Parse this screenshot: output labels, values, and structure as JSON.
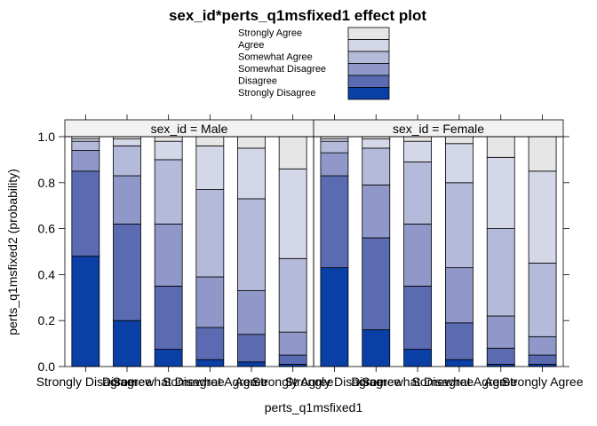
{
  "chart_data": {
    "type": "bar",
    "stacked": true,
    "title": "sex_id*perts_q1msfixed1 effect plot",
    "xlabel": "perts_q1msfixed1",
    "ylabel": "perts_q1msfixed2 (probability)",
    "ylim": [
      0,
      1
    ],
    "yticks": [
      "0.0",
      "0.2",
      "0.4",
      "0.6",
      "0.8",
      "1.0"
    ],
    "categories": [
      "Strongly Disagree",
      "Disagree",
      "Somewhat Disagree",
      "Somewhat Agree",
      "Agree",
      "Strongly Agree"
    ],
    "legend": {
      "placement": "top-center",
      "levels": [
        "Strongly Agree",
        "Agree",
        "Somewhat Agree",
        "Somewhat Disagree",
        "Disagree",
        "Strongly Disagree"
      ]
    },
    "colors": [
      "#0a3fa6",
      "#5a6bb2",
      "#8f98c8",
      "#b4bad9",
      "#d4d7e7",
      "#e6e6e6"
    ],
    "stack_order_bottom_to_top": [
      "Strongly Disagree",
      "Disagree",
      "Somewhat Disagree",
      "Somewhat Agree",
      "Agree",
      "Strongly Agree"
    ],
    "panels": [
      {
        "strip": "sex_id = Male",
        "cumulative": [
          [
            0.48,
            0.85,
            0.94,
            0.98,
            0.99,
            1.0
          ],
          [
            0.2,
            0.62,
            0.83,
            0.96,
            0.99,
            1.0
          ],
          [
            0.075,
            0.35,
            0.62,
            0.9,
            0.98,
            1.0
          ],
          [
            0.03,
            0.17,
            0.39,
            0.77,
            0.96,
            1.0
          ],
          [
            0.02,
            0.14,
            0.33,
            0.73,
            0.95,
            1.0
          ],
          [
            0.01,
            0.05,
            0.15,
            0.47,
            0.86,
            1.0
          ]
        ]
      },
      {
        "strip": "sex_id = Female",
        "cumulative": [
          [
            0.43,
            0.83,
            0.93,
            0.98,
            0.99,
            1.0
          ],
          [
            0.16,
            0.56,
            0.79,
            0.95,
            0.99,
            1.0
          ],
          [
            0.075,
            0.35,
            0.62,
            0.89,
            0.98,
            1.0
          ],
          [
            0.03,
            0.19,
            0.43,
            0.8,
            0.97,
            1.0
          ],
          [
            0.01,
            0.08,
            0.22,
            0.6,
            0.91,
            1.0
          ],
          [
            0.01,
            0.05,
            0.13,
            0.45,
            0.85,
            1.0
          ]
        ]
      }
    ]
  }
}
